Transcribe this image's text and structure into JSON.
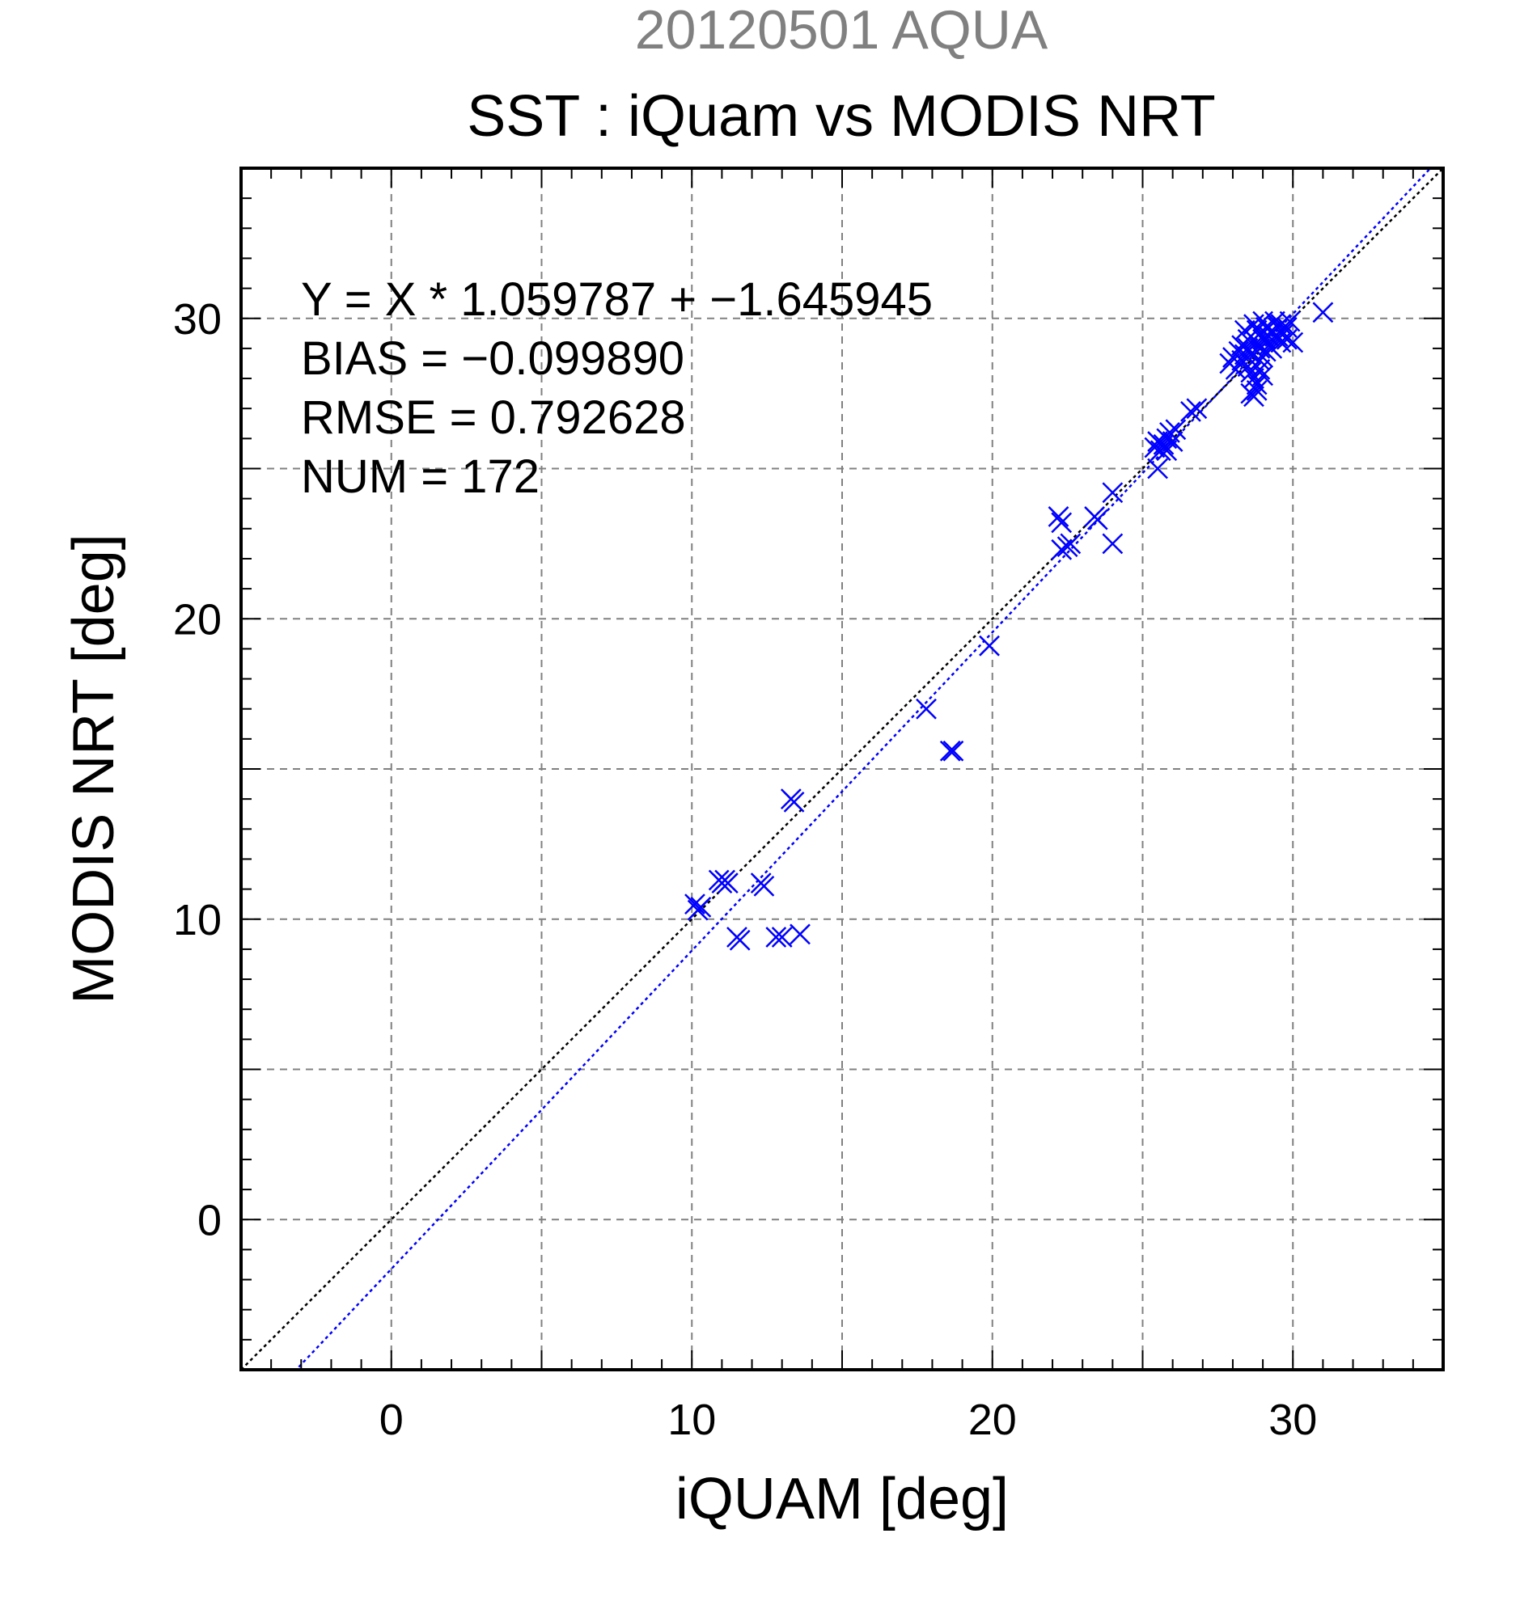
{
  "chart_data": {
    "type": "scatter",
    "supertitle": "20120501 AQUA",
    "title": "SST : iQuam vs MODIS NRT",
    "xlabel": "iQUAM [deg]",
    "ylabel": "MODIS NRT [deg]",
    "xlim": [
      -5,
      35
    ],
    "ylim": [
      -5,
      35
    ],
    "xticks": [
      0,
      10,
      20,
      30
    ],
    "yticks": [
      0,
      10,
      20,
      30
    ],
    "grid_step": 5,
    "grid": true,
    "annotations": [
      "Y = X * 1.059787 + −1.645945",
      "BIAS = −0.099890",
      "RMSE = 0.792628",
      "NUM = 172"
    ],
    "reference_line": {
      "slope": 1,
      "intercept": 0,
      "color": "#000000",
      "style": "dotted"
    },
    "fit_line": {
      "slope": 1.059787,
      "intercept": -1.645945,
      "color": "#0000ff",
      "style": "dotted"
    },
    "colors": {
      "points": "#0000ff",
      "supertitle": "#808080",
      "grid": "#808080",
      "axis": "#000000"
    },
    "marker": "x",
    "points": [
      [
        10.1,
        10.5
      ],
      [
        10.2,
        10.3
      ],
      [
        10.3,
        10.4
      ],
      [
        10.9,
        11.3
      ],
      [
        11.0,
        11.2
      ],
      [
        11.1,
        11.3
      ],
      [
        11.2,
        11.2
      ],
      [
        11.5,
        9.4
      ],
      [
        11.6,
        9.3
      ],
      [
        12.3,
        11.2
      ],
      [
        12.4,
        11.1
      ],
      [
        12.8,
        9.4
      ],
      [
        13.0,
        9.4
      ],
      [
        13.6,
        9.5
      ],
      [
        13.3,
        14.0
      ],
      [
        13.4,
        13.9
      ],
      [
        17.8,
        17.0
      ],
      [
        18.6,
        15.6
      ],
      [
        18.7,
        15.6
      ],
      [
        19.9,
        19.1
      ],
      [
        22.2,
        23.4
      ],
      [
        22.3,
        23.2
      ],
      [
        22.3,
        22.3
      ],
      [
        22.5,
        22.4
      ],
      [
        22.6,
        22.5
      ],
      [
        23.4,
        23.4
      ],
      [
        23.5,
        23.3
      ],
      [
        24.0,
        24.2
      ],
      [
        24.0,
        22.5
      ],
      [
        25.4,
        25.7
      ],
      [
        25.5,
        25.9
      ],
      [
        25.6,
        25.6
      ],
      [
        25.7,
        25.8
      ],
      [
        25.8,
        26.0
      ],
      [
        25.9,
        26.2
      ],
      [
        26.0,
        25.9
      ],
      [
        26.1,
        26.3
      ],
      [
        25.5,
        25.0
      ],
      [
        25.8,
        25.6
      ],
      [
        26.6,
        26.9
      ],
      [
        26.8,
        27.0
      ],
      [
        27.9,
        28.5
      ],
      [
        28.0,
        28.7
      ],
      [
        28.1,
        28.3
      ],
      [
        28.2,
        28.9
      ],
      [
        28.3,
        29.1
      ],
      [
        28.4,
        29.6
      ],
      [
        28.5,
        29.0
      ],
      [
        28.6,
        29.4
      ],
      [
        28.7,
        29.8
      ],
      [
        28.8,
        29.2
      ],
      [
        28.9,
        29.5
      ],
      [
        29.0,
        29.9
      ],
      [
        29.1,
        29.3
      ],
      [
        29.2,
        29.7
      ],
      [
        29.3,
        29.6
      ],
      [
        29.4,
        29.9
      ],
      [
        29.5,
        29.4
      ],
      [
        29.6,
        29.8
      ],
      [
        29.7,
        29.5
      ],
      [
        29.8,
        29.7
      ],
      [
        28.5,
        28.4
      ],
      [
        28.6,
        28.2
      ],
      [
        28.7,
        28.0
      ],
      [
        28.8,
        27.8
      ],
      [
        28.9,
        28.3
      ],
      [
        29.0,
        28.7
      ],
      [
        29.1,
        28.9
      ],
      [
        29.2,
        29.1
      ],
      [
        28.6,
        27.5
      ],
      [
        28.7,
        27.4
      ],
      [
        28.8,
        27.6
      ],
      [
        29.0,
        28.1
      ],
      [
        28.4,
        28.8
      ],
      [
        28.5,
        29.3
      ],
      [
        29.3,
        29.0
      ],
      [
        29.4,
        29.4
      ],
      [
        29.6,
        29.2
      ],
      [
        29.8,
        29.3
      ],
      [
        30.0,
        29.2
      ],
      [
        29.9,
        29.9
      ],
      [
        28.7,
        29.3
      ],
      [
        28.8,
        29.6
      ],
      [
        28.9,
        29.0
      ],
      [
        29.1,
        29.7
      ],
      [
        29.2,
        29.4
      ],
      [
        28.3,
        28.6
      ],
      [
        28.6,
        28.8
      ],
      [
        28.9,
        28.6
      ],
      [
        29.0,
        29.3
      ],
      [
        29.5,
        29.7
      ],
      [
        31.0,
        30.2
      ]
    ]
  }
}
